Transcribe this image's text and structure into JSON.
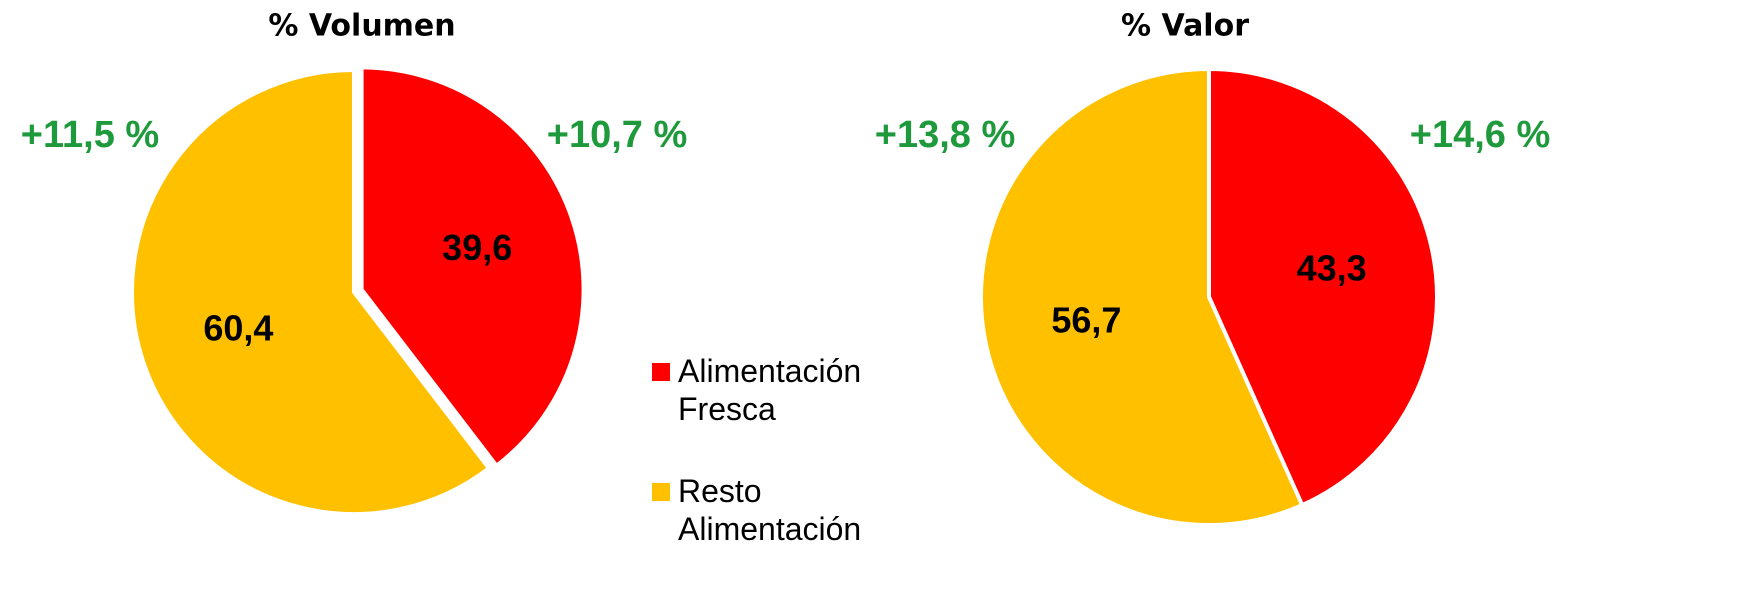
{
  "chart_data": [
    {
      "type": "pie",
      "title": "% Volumen",
      "categories": [
        "Alimentación Fresca",
        "Resto Alimentación"
      ],
      "values": [
        39.6,
        60.4
      ],
      "value_labels": [
        "39,6",
        "60,4"
      ],
      "colors": [
        "#ff0000",
        "#ffc000"
      ],
      "annotations": [
        "+11,5 %",
        "+10,7 %"
      ],
      "legend": "center"
    },
    {
      "type": "pie",
      "title": "% Valor",
      "categories": [
        "Alimentación Fresca",
        "Resto Alimentación"
      ],
      "values": [
        43.3,
        56.7
      ],
      "value_labels": [
        "43,3",
        "56,7"
      ],
      "colors": [
        "#ff0000",
        "#ffc000"
      ],
      "annotations": [
        "+13,8 %",
        "+14,6 %"
      ]
    }
  ]
}
